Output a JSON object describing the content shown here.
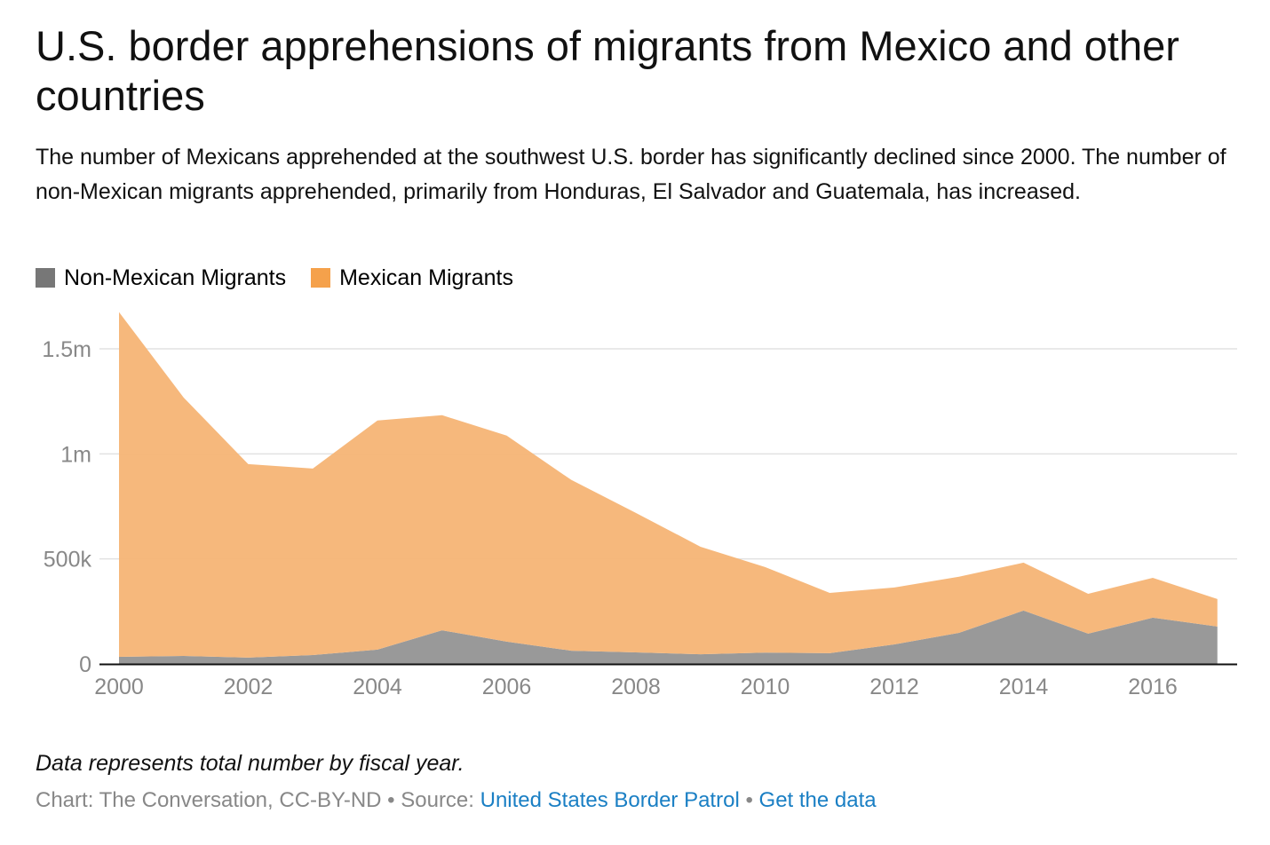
{
  "title": "U.S. border apprehensions of migrants from Mexico and other countries",
  "description": "The number of Mexicans apprehended at the southwest U.S. border has significantly declined since 2000. The number of non-Mexican migrants apprehended, primarily from Honduras, El Salvador and Guatemala, has increased.",
  "note": "Data represents total number by fiscal year.",
  "credit": {
    "chart_label": "Chart: The Conversation, CC-BY-ND",
    "sep1": " • ",
    "source_label": "Source: ",
    "source_link": "United States Border Patrol",
    "sep2": " • ",
    "data_link": "Get the data"
  },
  "chart_data": {
    "type": "area",
    "stacked": true,
    "legend_position": "top-left",
    "grid": true,
    "x": [
      2000,
      2001,
      2002,
      2003,
      2004,
      2005,
      2006,
      2007,
      2008,
      2009,
      2010,
      2011,
      2012,
      2013,
      2014,
      2015,
      2016,
      2017
    ],
    "xlim": [
      2000,
      2017
    ],
    "ylim": [
      0,
      1500000
    ],
    "x_ticks": [
      "2000",
      "2002",
      "2004",
      "2006",
      "2008",
      "2010",
      "2012",
      "2014",
      "2016"
    ],
    "y_ticks": [
      {
        "value": 0,
        "label": "0"
      },
      {
        "value": 500000,
        "label": "500k"
      },
      {
        "value": 1000000,
        "label": "1m"
      },
      {
        "value": 1500000,
        "label": "1.5m"
      }
    ],
    "series": [
      {
        "name": "Non-Mexican Migrants",
        "color": "#999999",
        "legend_color": "#777777",
        "values": [
          34000,
          38000,
          30000,
          42000,
          68000,
          160000,
          106000,
          63000,
          55000,
          46000,
          54000,
          51000,
          93000,
          148000,
          254000,
          144000,
          220000,
          178000
        ]
      },
      {
        "name": "Mexican Migrants",
        "color": "#f5b475",
        "legend_color": "#f5a14b",
        "values": [
          1641000,
          1230000,
          921000,
          888000,
          1091000,
          1024000,
          981000,
          813000,
          664000,
          512000,
          407000,
          287000,
          271000,
          267000,
          228000,
          190000,
          190000,
          131000
        ]
      }
    ]
  }
}
